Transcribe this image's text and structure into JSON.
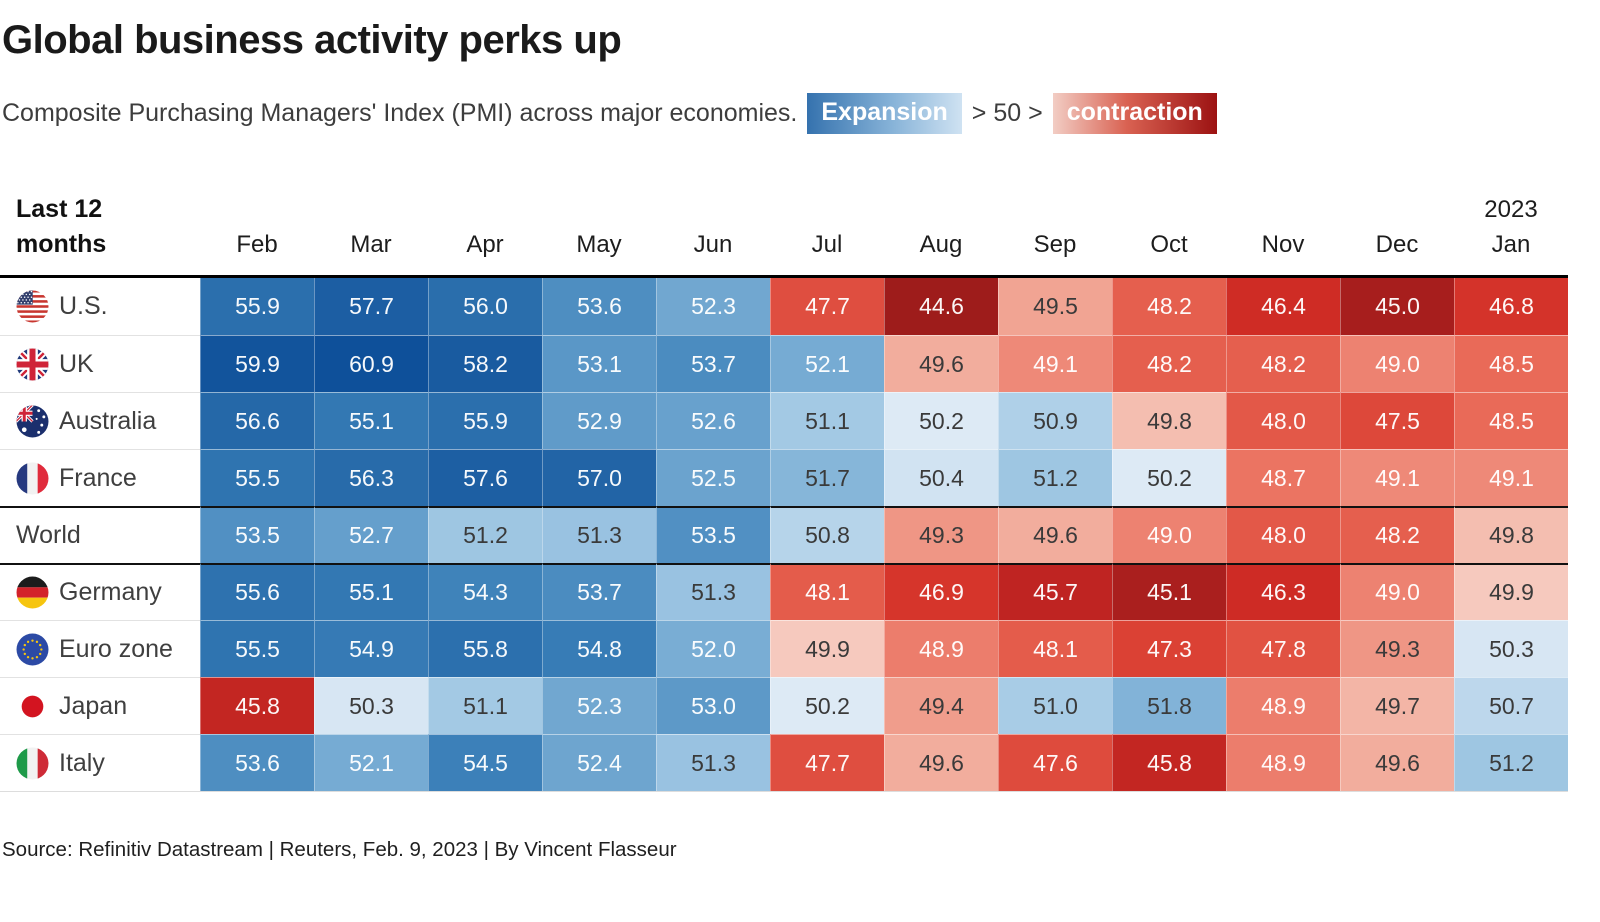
{
  "title": "Global business activity perks up",
  "subtitle": "Composite Purchasing Managers' Index (PMI) across major economies.",
  "legend": {
    "expansion_label": "Expansion",
    "threshold_label": "> 50 >",
    "contraction_label": "contraction",
    "expansion_gradient": [
      "#3572ae",
      "#cfe2f2"
    ],
    "contraction_gradient": [
      "#f2cdc4",
      "#9c1212"
    ]
  },
  "table": {
    "corner_label": "Last 12 months",
    "year_label": "2023"
  },
  "source": "Source: Refinitiv Datastream | Reuters, Feb. 9, 2023 | By Vincent Flasseur",
  "chart_data": {
    "type": "heatmap",
    "title": "Global business activity perks up",
    "subtitle": "Composite Purchasing Managers' Index (PMI) across major economies.",
    "x": [
      "Feb",
      "Mar",
      "Apr",
      "May",
      "Jun",
      "Jul",
      "Aug",
      "Sep",
      "Oct",
      "Nov",
      "Dec",
      "Jan"
    ],
    "x_note": "Last 12 months; final column Jan is 2023",
    "midpoint": 50,
    "colorscale": {
      "above_50": "blue = expansion",
      "below_50": "red = contraction",
      "blue_dark": "#0e509a",
      "blue_light": "#e9f1f8",
      "red_light": "#f8d4cb",
      "red_dark": "#9c1b1b"
    },
    "rows": [
      {
        "name": "U.S.",
        "flag": "us",
        "values": [
          55.9,
          57.7,
          56.0,
          53.6,
          52.3,
          47.7,
          44.6,
          49.5,
          48.2,
          46.4,
          45.0,
          46.8
        ]
      },
      {
        "name": "UK",
        "flag": "uk",
        "values": [
          59.9,
          60.9,
          58.2,
          53.1,
          53.7,
          52.1,
          49.6,
          49.1,
          48.2,
          48.2,
          49.0,
          48.5
        ]
      },
      {
        "name": "Australia",
        "flag": "australia",
        "values": [
          56.6,
          55.1,
          55.9,
          52.9,
          52.6,
          51.1,
          50.2,
          50.9,
          49.8,
          48.0,
          47.5,
          48.5
        ]
      },
      {
        "name": "France",
        "flag": "france",
        "values": [
          55.5,
          56.3,
          57.6,
          57.0,
          52.5,
          51.7,
          50.4,
          51.2,
          50.2,
          48.7,
          49.1,
          49.1
        ]
      },
      {
        "name": "World",
        "flag": null,
        "values": [
          53.5,
          52.7,
          51.2,
          51.3,
          53.5,
          50.8,
          49.3,
          49.6,
          49.0,
          48.0,
          48.2,
          49.8
        ]
      },
      {
        "name": "Germany",
        "flag": "germany",
        "values": [
          55.6,
          55.1,
          54.3,
          53.7,
          51.3,
          48.1,
          46.9,
          45.7,
          45.1,
          46.3,
          49.0,
          49.9
        ]
      },
      {
        "name": "Euro zone",
        "flag": "eurozone",
        "values": [
          55.5,
          54.9,
          55.8,
          54.8,
          52.0,
          49.9,
          48.9,
          48.1,
          47.3,
          47.8,
          49.3,
          50.3
        ]
      },
      {
        "name": "Japan",
        "flag": "japan",
        "values": [
          45.8,
          50.3,
          51.1,
          52.3,
          53.0,
          50.2,
          49.4,
          51.0,
          51.8,
          48.9,
          49.7,
          50.7
        ]
      },
      {
        "name": "Italy",
        "flag": "italy",
        "values": [
          53.6,
          52.1,
          54.5,
          52.4,
          51.3,
          47.7,
          49.6,
          47.6,
          45.8,
          48.9,
          49.6,
          51.2
        ]
      }
    ]
  }
}
